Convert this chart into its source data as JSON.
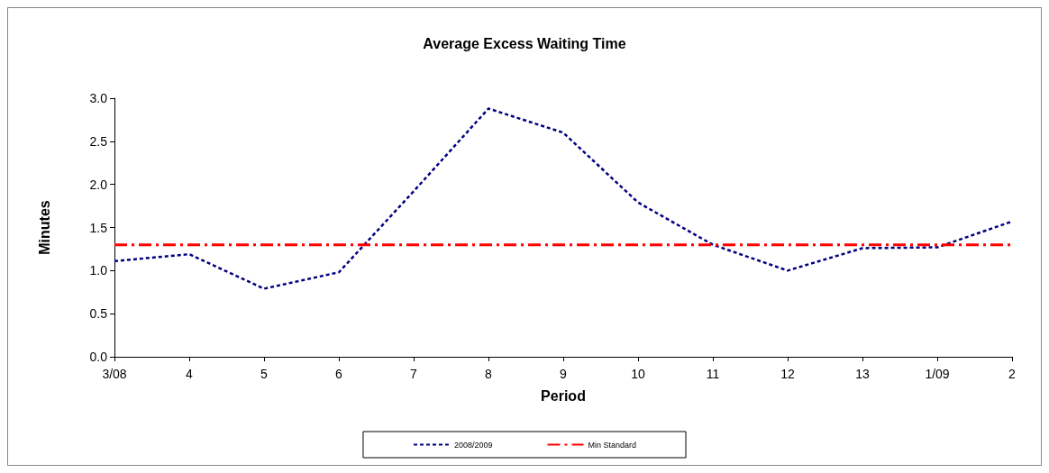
{
  "chart_data": {
    "type": "line",
    "title": "Average Excess Waiting Time",
    "xlabel": "Period",
    "ylabel": "Minutes",
    "categories": [
      "3/08",
      "4",
      "5",
      "6",
      "7",
      "8",
      "9",
      "10",
      "11",
      "12",
      "13",
      "1/09",
      "2"
    ],
    "series": [
      {
        "name": "2008/2009",
        "color": "#000080",
        "line_style": "dashed",
        "values": [
          1.11,
          1.19,
          0.79,
          0.98,
          1.92,
          2.88,
          2.6,
          1.79,
          1.3,
          1.0,
          1.26,
          1.27,
          1.57
        ]
      },
      {
        "name": "Min Standard",
        "color": "#ff0000",
        "line_style": "dashdot",
        "values": [
          1.3,
          1.3,
          1.3,
          1.3,
          1.3,
          1.3,
          1.3,
          1.3,
          1.3,
          1.3,
          1.3,
          1.3,
          1.3
        ]
      }
    ],
    "ylim": [
      0,
      3
    ],
    "yticks": [
      {
        "value": 0,
        "label": "0.0"
      },
      {
        "value": 0.5,
        "label": "0.5"
      },
      {
        "value": 1,
        "label": "1.0"
      },
      {
        "value": 1.5,
        "label": "1.5"
      },
      {
        "value": 2,
        "label": "2.0"
      },
      {
        "value": 2.5,
        "label": "2.5"
      },
      {
        "value": 3,
        "label": "3.0"
      }
    ],
    "grid": false,
    "legend": "bottom",
    "marker": "none"
  }
}
